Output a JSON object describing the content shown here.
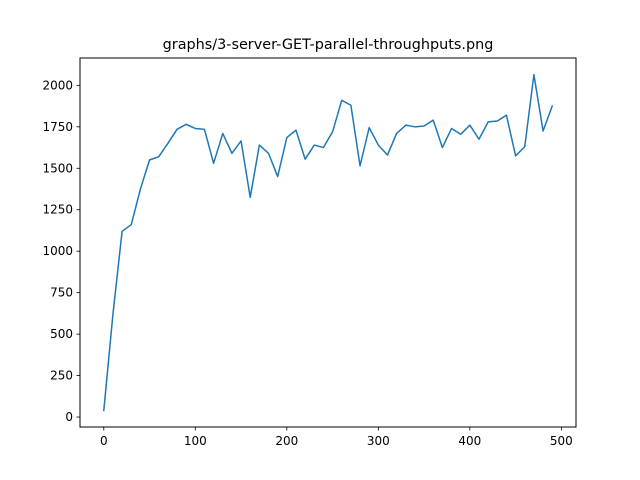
{
  "chart_data": {
    "type": "line",
    "title": "graphs/3-server-GET-parallel-throughputs.png",
    "xlabel": "",
    "ylabel": "",
    "xlim": [
      -26,
      516
    ],
    "ylim": [
      -60,
      2165
    ],
    "xticks": [
      0,
      100,
      200,
      300,
      400,
      500
    ],
    "yticks": [
      0,
      250,
      500,
      750,
      1000,
      1250,
      1500,
      1750,
      2000
    ],
    "grid": false,
    "series": [
      {
        "color": "#1f77b4",
        "x": [
          0,
          10,
          20,
          30,
          40,
          50,
          60,
          70,
          80,
          90,
          100,
          110,
          120,
          130,
          140,
          150,
          160,
          170,
          180,
          190,
          200,
          210,
          220,
          230,
          240,
          250,
          260,
          270,
          280,
          290,
          300,
          310,
          320,
          330,
          340,
          350,
          360,
          370,
          380,
          390,
          400,
          410,
          420,
          430,
          440,
          450,
          460,
          470,
          480,
          490
        ],
        "y": [
          40,
          620,
          1120,
          1160,
          1375,
          1550,
          1570,
          1650,
          1735,
          1765,
          1740,
          1735,
          1530,
          1710,
          1590,
          1665,
          1325,
          1640,
          1590,
          1450,
          1685,
          1730,
          1555,
          1640,
          1625,
          1720,
          1910,
          1880,
          1515,
          1745,
          1640,
          1580,
          1710,
          1760,
          1750,
          1755,
          1790,
          1625,
          1740,
          1705,
          1760,
          1675,
          1780,
          1785,
          1820,
          1575,
          1630,
          2065,
          1725,
          1875
        ]
      }
    ]
  }
}
